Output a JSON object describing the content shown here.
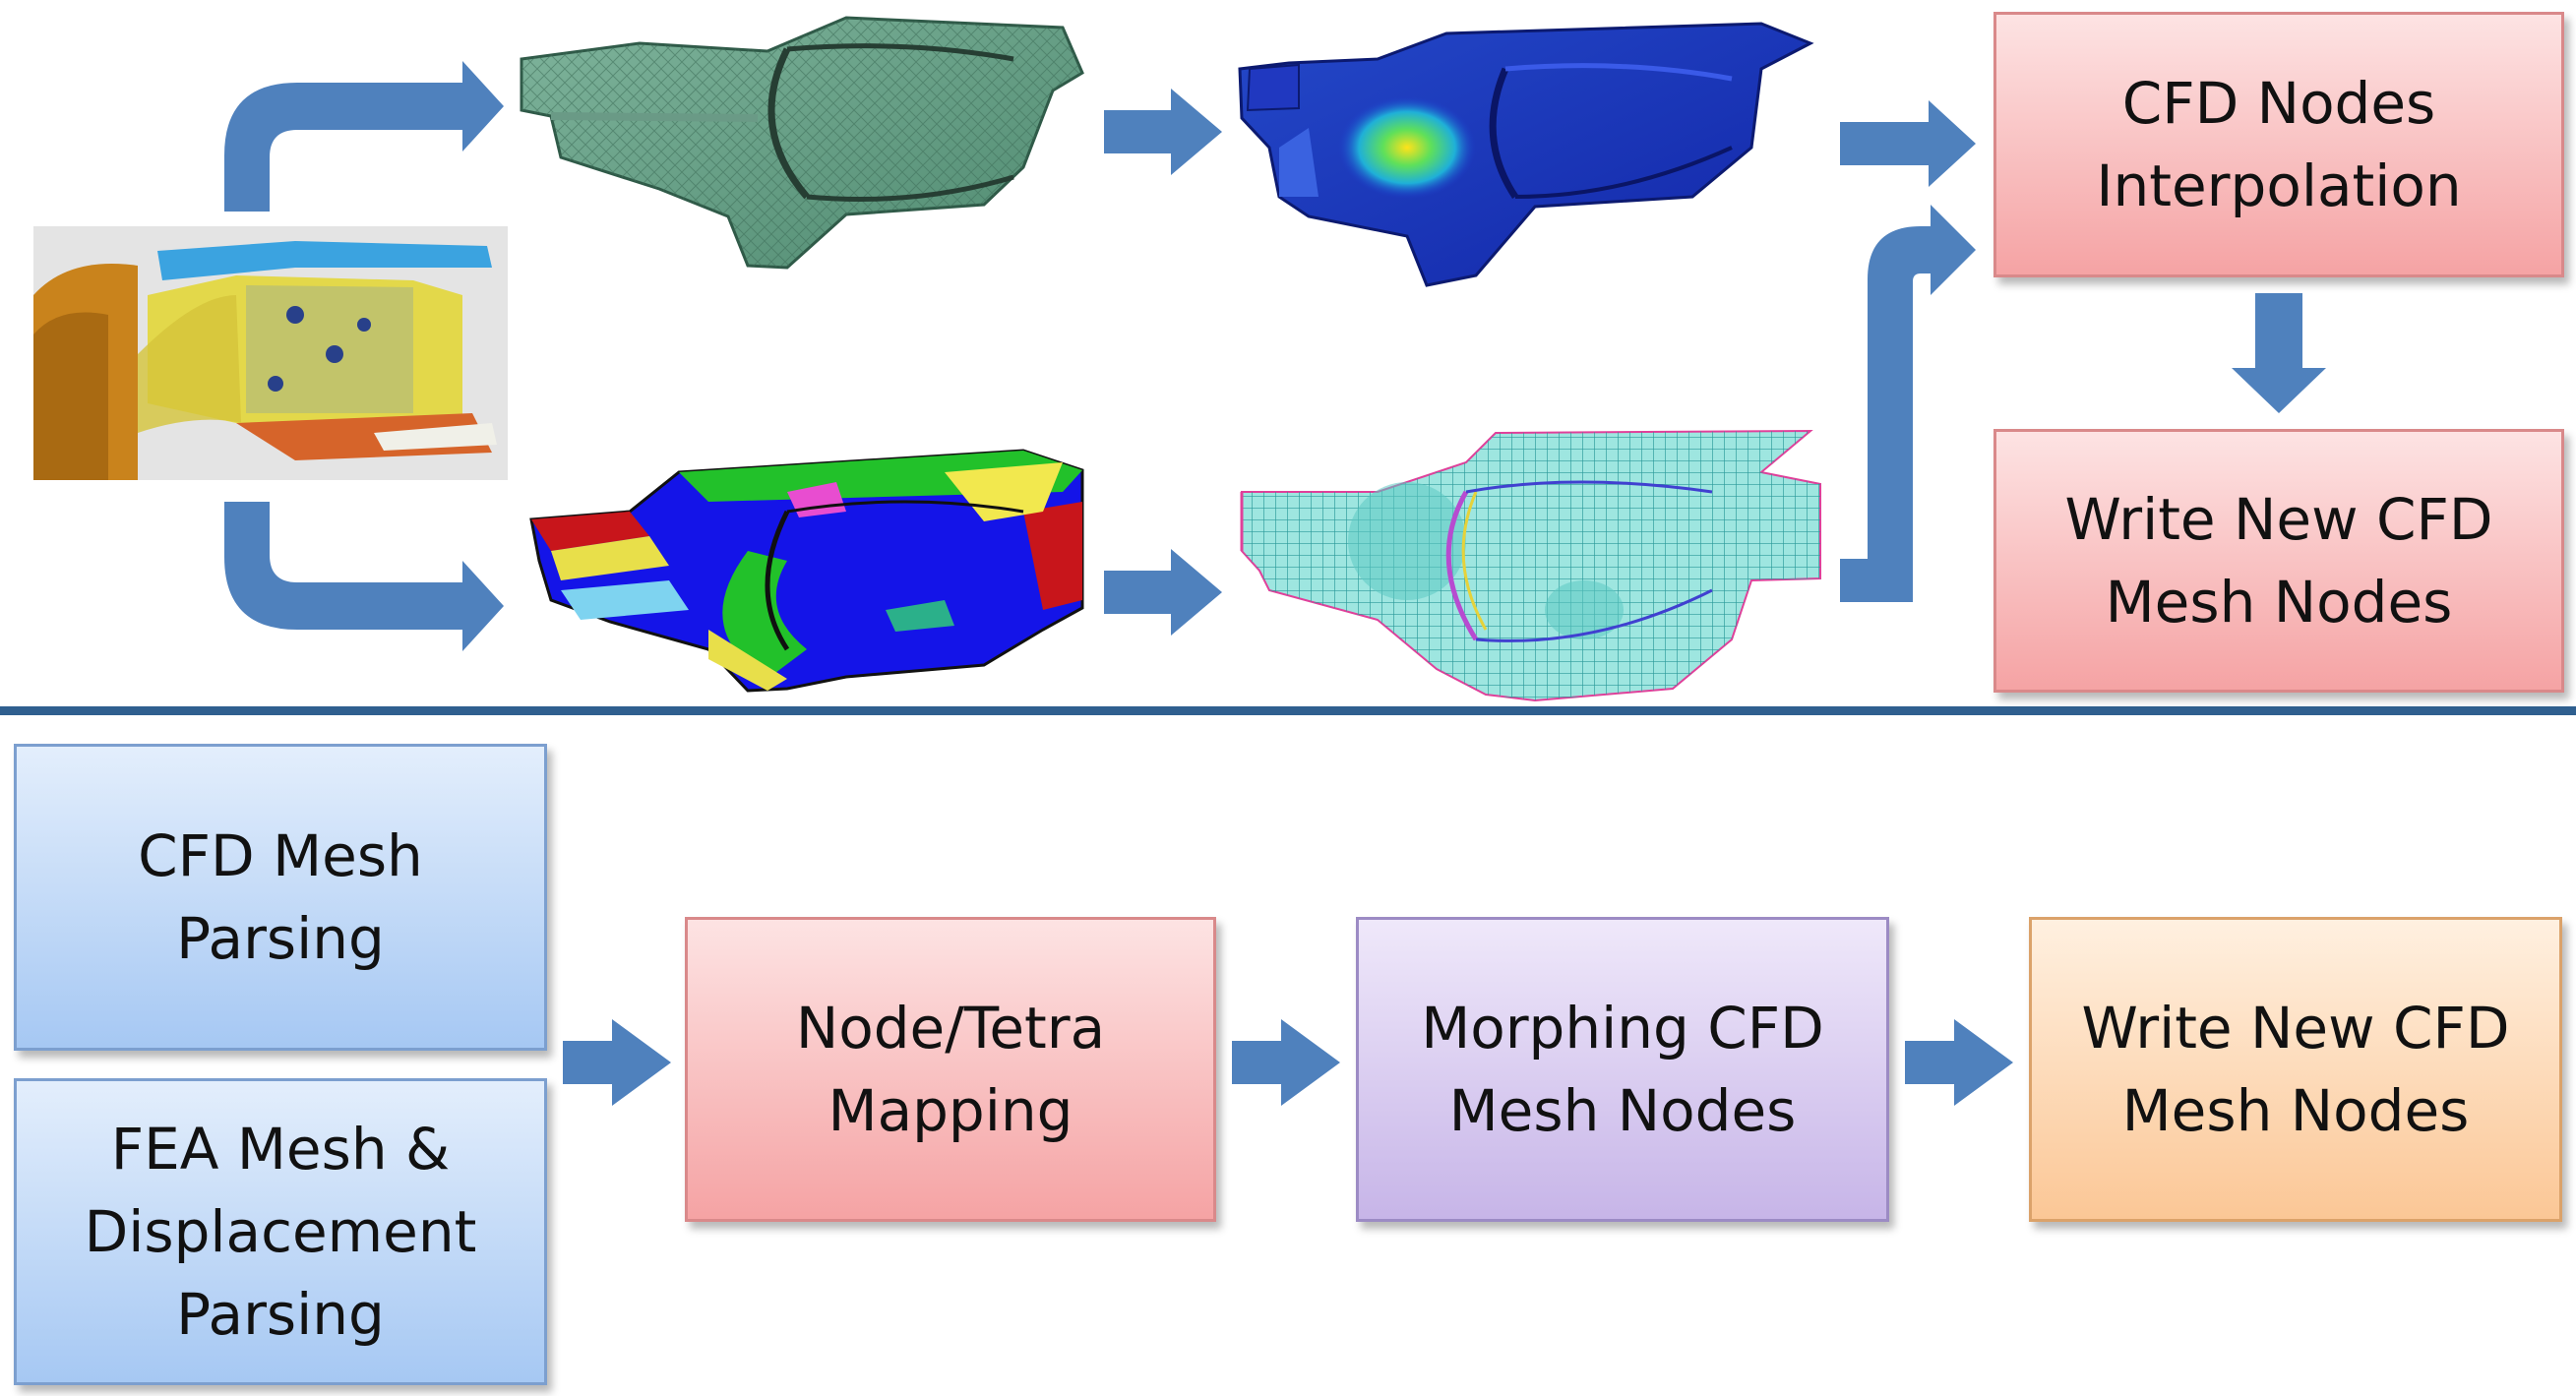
{
  "colors": {
    "arrow": "#4f81bd",
    "divider": "#2f5f8f",
    "pink_box": "#f5a3a4",
    "blue_box": "#a6c8f3",
    "purple_box": "#c7b5e8",
    "orange_box": "#fbc796"
  },
  "top": {
    "interp_box": {
      "line1": "CFD Nodes",
      "line2": "Interpolation"
    },
    "write_box": {
      "line1": "Write New CFD",
      "line2": "Mesh Nodes"
    }
  },
  "bottom": {
    "cfd_parse": {
      "line1": "CFD Mesh",
      "line2": "Parsing"
    },
    "fea_parse": {
      "line1": "FEA Mesh &",
      "line2": "Displacement",
      "line3": "Parsing"
    },
    "mapping": {
      "line1": "Node/Tetra",
      "line2": "Mapping"
    },
    "morphing": {
      "line1": "Morphing CFD",
      "line2": "Mesh Nodes"
    },
    "write": {
      "line1": "Write New CFD",
      "line2": "Mesh Nodes"
    }
  },
  "images": {
    "cad": "cad-model-image",
    "green_mesh": "green-surface-mesh-image",
    "displacement": "displacement-contour-image",
    "colored_parts": "colored-cfd-parts-image",
    "cfd_grid": "cfd-volume-mesh-image"
  }
}
